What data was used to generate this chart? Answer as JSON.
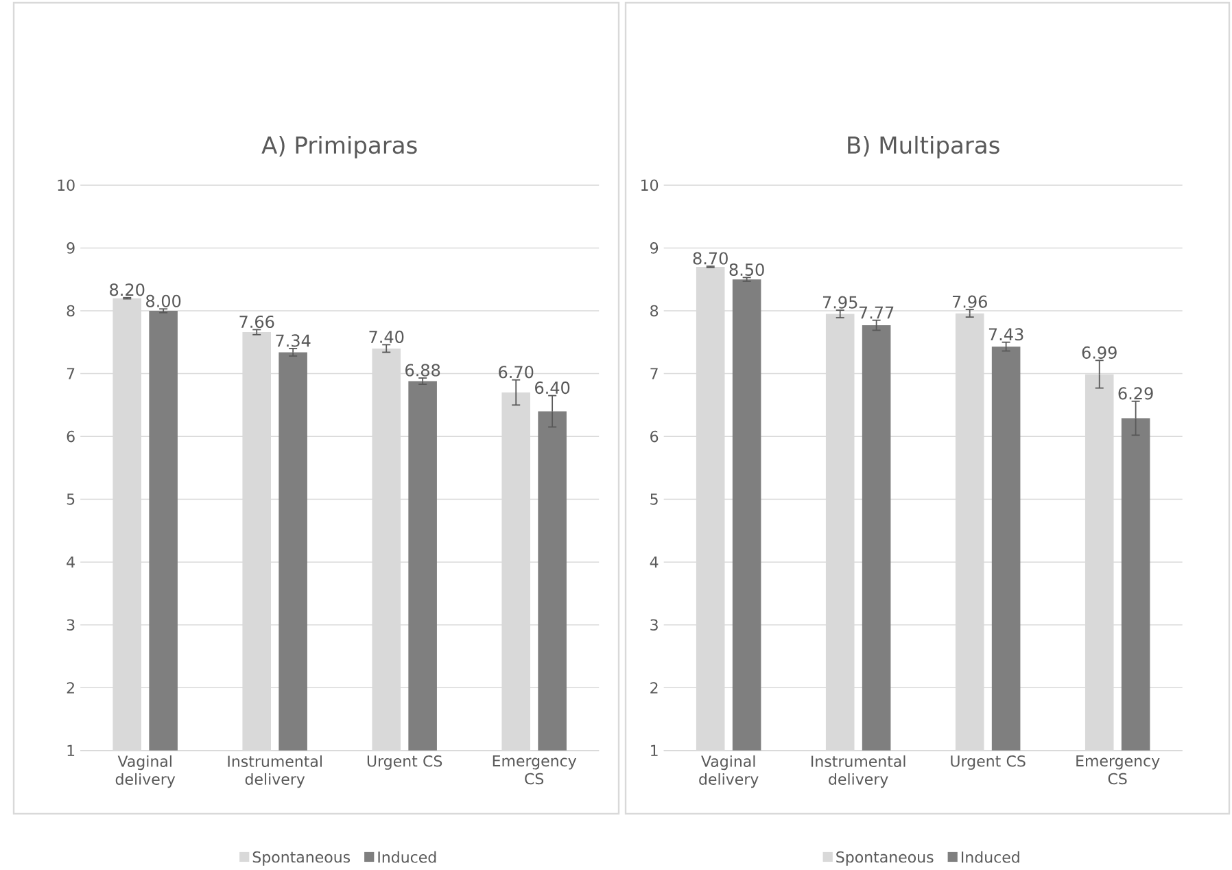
{
  "chart_data": [
    {
      "type": "bar",
      "title": "A) Primiparas",
      "categories": [
        "Vaginal delivery",
        "Instrumental delivery",
        "Urgent CS",
        "Emergency CS"
      ],
      "series": [
        {
          "name": "Spontaneous",
          "color": "#d9d9d9",
          "values": [
            8.2,
            7.66,
            7.4,
            6.7
          ],
          "errors": [
            0.01,
            0.04,
            0.06,
            0.2
          ],
          "value_labels": [
            "8.20",
            "7.66",
            "7.40",
            "6.70"
          ]
        },
        {
          "name": "Induced",
          "color": "#7f7f7f",
          "values": [
            8.0,
            7.34,
            6.88,
            6.4
          ],
          "errors": [
            0.03,
            0.06,
            0.05,
            0.25
          ],
          "value_labels": [
            "8.00",
            "7.34",
            "6.88",
            "6.40"
          ]
        }
      ],
      "ylim": [
        1,
        10
      ],
      "yticks": [
        1,
        2,
        3,
        4,
        5,
        6,
        7,
        8,
        9,
        10
      ],
      "grid": "y",
      "legend": "bottom"
    },
    {
      "type": "bar",
      "title": "B) Multiparas",
      "categories": [
        "Vaginal delivery",
        "Instrumental delivery",
        "Urgent CS",
        "Emergency CS"
      ],
      "series": [
        {
          "name": "Spontaneous",
          "color": "#d9d9d9",
          "values": [
            8.7,
            7.95,
            7.96,
            6.99
          ],
          "errors": [
            0.01,
            0.06,
            0.06,
            0.22
          ],
          "value_labels": [
            "8.70",
            "7.95",
            "7.96",
            "6.99"
          ]
        },
        {
          "name": "Induced",
          "color": "#7f7f7f",
          "values": [
            8.5,
            7.77,
            7.43,
            6.29
          ],
          "errors": [
            0.03,
            0.08,
            0.07,
            0.27
          ],
          "value_labels": [
            "8.50",
            "7.77",
            "7.43",
            "6.29"
          ]
        }
      ],
      "ylim": [
        1,
        10
      ],
      "yticks": [
        1,
        2,
        3,
        4,
        5,
        6,
        7,
        8,
        9,
        10
      ],
      "grid": "y",
      "legend": "bottom"
    }
  ]
}
